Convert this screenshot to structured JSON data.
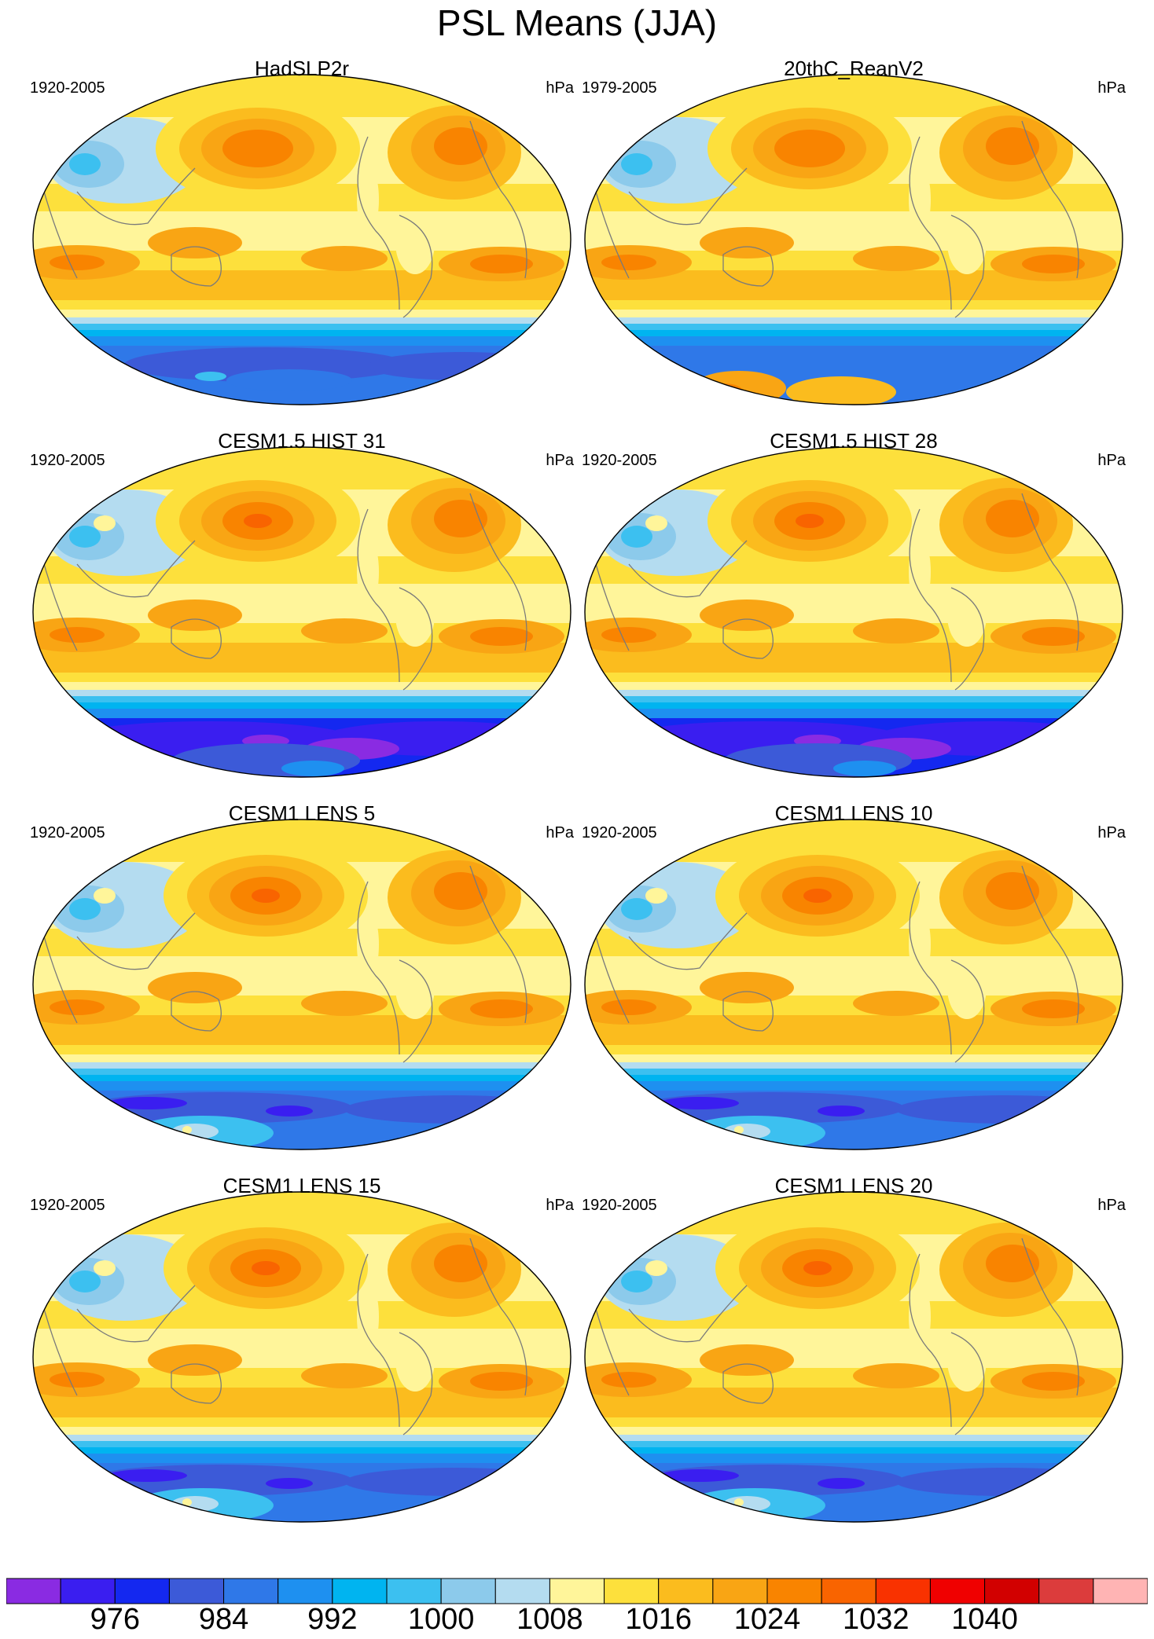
{
  "figure_title": "PSL Means (JJA)",
  "units": "hPa",
  "panels": [
    {
      "title": "HadSLP2r",
      "years": "1920-2005",
      "units": "hPa",
      "variant": "obs"
    },
    {
      "title": "20thC_ReanV2",
      "years": "1979-2005",
      "units": "hPa",
      "variant": "rean"
    },
    {
      "title": "CESM1.5 HIST 31",
      "years": "1920-2005",
      "units": "hPa",
      "variant": "cesm15"
    },
    {
      "title": "CESM1.5 HIST 28",
      "years": "1920-2005",
      "units": "hPa",
      "variant": "cesm15"
    },
    {
      "title": "CESM1 LENS 5",
      "years": "1920-2005",
      "units": "hPa",
      "variant": "lens"
    },
    {
      "title": "CESM1 LENS 10",
      "years": "1920-2005",
      "units": "hPa",
      "variant": "lens"
    },
    {
      "title": "CESM1 LENS 15",
      "years": "1920-2005",
      "units": "hPa",
      "variant": "lens"
    },
    {
      "title": "CESM1 LENS 20",
      "years": "1920-2005",
      "units": "hPa",
      "variant": "lens"
    }
  ],
  "colorbar": {
    "colors": [
      "#8a2be2",
      "#3a1ef0",
      "#1428f0",
      "#3c5ad8",
      "#2f78e8",
      "#1e90f0",
      "#00b4f0",
      "#3cc0f0",
      "#8ccaeb",
      "#b4dcf0",
      "#fff59a",
      "#fde03c",
      "#fbbc1e",
      "#f9a514",
      "#f98400",
      "#f96400",
      "#f93200",
      "#f00000",
      "#d20000",
      "#dc3c3c",
      "#ffb4b4"
    ],
    "tick_labels": [
      "976",
      "984",
      "992",
      "1000",
      "1008",
      "1016",
      "1024",
      "1032",
      "1040"
    ],
    "tick_after_box": [
      2,
      4,
      6,
      8,
      10,
      12,
      14,
      16,
      18
    ]
  }
}
